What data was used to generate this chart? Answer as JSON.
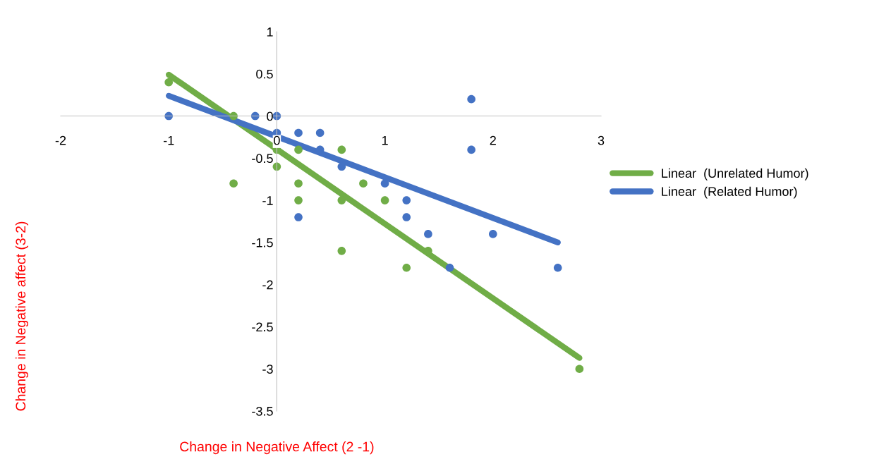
{
  "chart_data": {
    "type": "scatter",
    "xlabel": "Change in Negative Affect (2 -1)",
    "ylabel": "Change in Negative affect (3-2)",
    "xlim": [
      -2,
      3
    ],
    "ylim": [
      -3.5,
      1
    ],
    "xticks": [
      -2,
      -1,
      0,
      1,
      2,
      3
    ],
    "yticks": [
      -3.5,
      -3,
      -2.5,
      -2,
      -1.5,
      -1,
      -0.5,
      0,
      0.5,
      1
    ],
    "grid": false,
    "legend": "right",
    "marker": "circle",
    "series": [
      {
        "color": "#70ad47",
        "x": [
          -1,
          -0.4,
          -0.4,
          0,
          0,
          0.2,
          0.2,
          0.2,
          0.6,
          0.6,
          0.6,
          0.8,
          1,
          1.2,
          1.4,
          2.8
        ],
        "values": [
          0.4,
          0,
          -0.8,
          -0.4,
          -0.6,
          -0.4,
          -0.8,
          -1,
          -0.4,
          -1,
          -1.6,
          -0.8,
          -1,
          -1.8,
          -1.6,
          -3
        ]
      },
      {
        "color": "#4472c4",
        "x": [
          -1,
          -0.2,
          0,
          0,
          0.2,
          0.4,
          0.4,
          0.6,
          1,
          1.2,
          1.2,
          0.2,
          1.4,
          1.6,
          1.8,
          1.8,
          2,
          2.6
        ],
        "values": [
          0,
          0,
          0,
          -0.2,
          -0.2,
          -0.2,
          -0.4,
          -0.6,
          -0.8,
          -1,
          -1.2,
          -1.2,
          -1.4,
          -1.8,
          0.2,
          -0.4,
          -1.4,
          -1.8
        ]
      },
      {
        "type": "line",
        "name": "Linear  (Unrelated Humor)",
        "color": "#70ad47",
        "marker": "none",
        "x": [
          -1,
          2.8
        ],
        "values": [
          0.49,
          -2.87
        ]
      },
      {
        "type": "line",
        "name": "Linear  (Related Humor)",
        "color": "#4472c4",
        "marker": "none",
        "x": [
          -1,
          2.6
        ],
        "values": [
          0.24,
          -1.5
        ]
      }
    ]
  }
}
